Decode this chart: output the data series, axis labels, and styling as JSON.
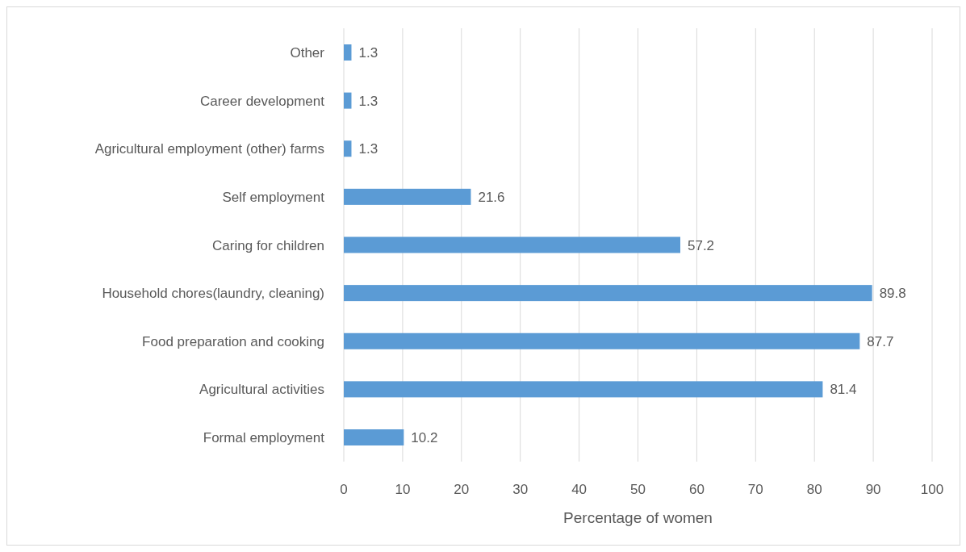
{
  "chart_data": {
    "type": "bar",
    "orientation": "horizontal",
    "categories": [
      "Other",
      "Career development",
      "Agricultural employment (other) farms",
      "Self employment",
      "Caring for children",
      "Household chores(laundry, cleaning)",
      "Food preparation and cooking",
      "Agricultural activities",
      "Formal employment"
    ],
    "values": [
      1.3,
      1.3,
      1.3,
      21.6,
      57.2,
      89.8,
      87.7,
      81.4,
      10.2
    ],
    "color": "#5b9bd5",
    "xlim": [
      0,
      100
    ],
    "xticks": [
      0,
      10,
      20,
      30,
      40,
      50,
      60,
      70,
      80,
      90,
      100
    ],
    "xlabel": "Percentage of women",
    "grid": true,
    "data_labels": true
  }
}
